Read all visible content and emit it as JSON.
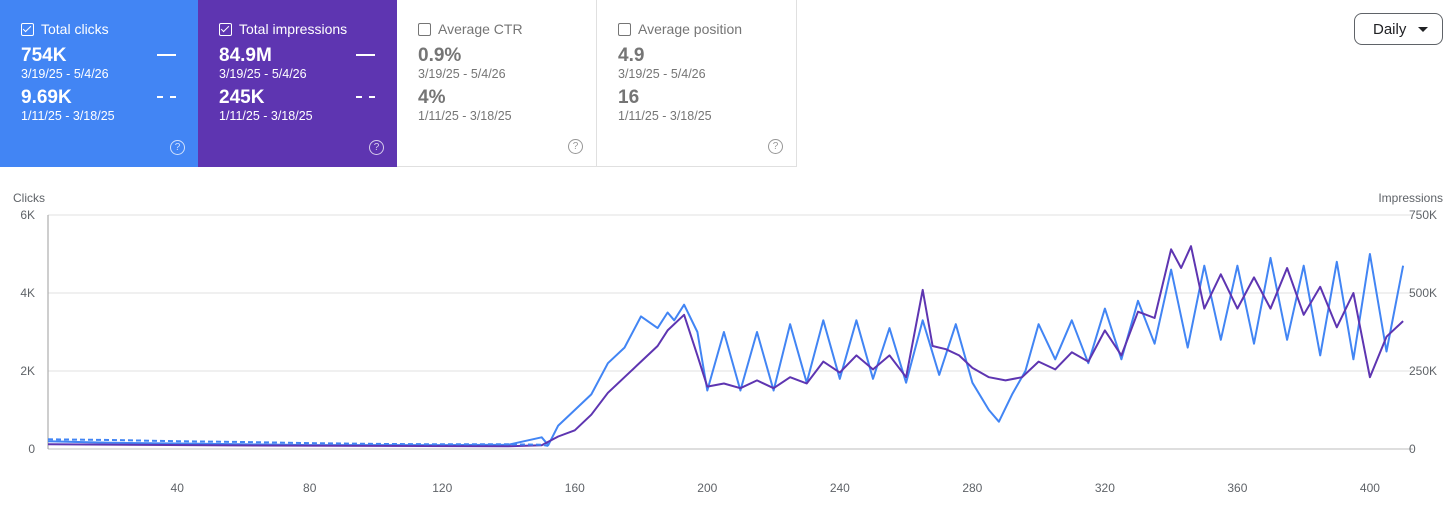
{
  "cards": [
    {
      "label": "Total clicks",
      "checked": true,
      "current": {
        "value": "754K",
        "range": "3/19/25 - 5/4/26"
      },
      "previous": {
        "value": "9.69K",
        "range": "1/11/25 - 3/18/25"
      },
      "help": "?"
    },
    {
      "label": "Total impressions",
      "checked": true,
      "current": {
        "value": "84.9M",
        "range": "3/19/25 - 5/4/26"
      },
      "previous": {
        "value": "245K",
        "range": "1/11/25 - 3/18/25"
      },
      "help": "?"
    },
    {
      "label": "Average CTR",
      "checked": false,
      "current": {
        "value": "0.9%",
        "range": "3/19/25 - 5/4/26"
      },
      "previous": {
        "value": "4%",
        "range": "1/11/25 - 3/18/25"
      },
      "help": "?"
    },
    {
      "label": "Average position",
      "checked": false,
      "current": {
        "value": "4.9",
        "range": "3/19/25 - 5/4/26"
      },
      "previous": {
        "value": "16",
        "range": "1/11/25 - 3/18/25"
      },
      "help": "?"
    }
  ],
  "granularity": {
    "selected": "Daily",
    "icon": "caret-down-icon"
  },
  "colors": {
    "clicks": "#4285f4",
    "impressions": "#5e35b1",
    "previous_clicks": "#4285f4",
    "grid": "#e0e0e0"
  },
  "chart_data": {
    "type": "line",
    "xlabel": "",
    "x_ticks": [
      "40",
      "80",
      "120",
      "160",
      "200",
      "240",
      "280",
      "320",
      "360",
      "400"
    ],
    "x_range": [
      1,
      413
    ],
    "y_left": {
      "label": "Clicks",
      "ticks": [
        "0",
        "2K",
        "4K",
        "6K"
      ],
      "range": [
        0,
        6000
      ]
    },
    "y_right": {
      "label": "Impressions",
      "ticks": [
        "0",
        "250K",
        "500K",
        "750K"
      ],
      "range": [
        0,
        750000
      ]
    },
    "grid": true,
    "series": [
      {
        "axis": "left",
        "style": "solid",
        "points": [
          [
            1,
            200
          ],
          [
            10,
            180
          ],
          [
            20,
            160
          ],
          [
            40,
            140
          ],
          [
            60,
            120
          ],
          [
            80,
            100
          ],
          [
            100,
            100
          ],
          [
            120,
            100
          ],
          [
            140,
            110
          ],
          [
            150,
            300
          ],
          [
            152,
            100
          ],
          [
            155,
            600
          ],
          [
            160,
            1000
          ],
          [
            165,
            1400
          ],
          [
            170,
            2200
          ],
          [
            175,
            2600
          ],
          [
            180,
            3400
          ],
          [
            185,
            3100
          ],
          [
            188,
            3500
          ],
          [
            190,
            3300
          ],
          [
            193,
            3700
          ],
          [
            197,
            3000
          ],
          [
            200,
            1500
          ],
          [
            205,
            3000
          ],
          [
            210,
            1500
          ],
          [
            215,
            3000
          ],
          [
            220,
            1500
          ],
          [
            225,
            3200
          ],
          [
            230,
            1700
          ],
          [
            235,
            3300
          ],
          [
            240,
            1800
          ],
          [
            245,
            3300
          ],
          [
            250,
            1800
          ],
          [
            255,
            3100
          ],
          [
            260,
            1700
          ],
          [
            265,
            3300
          ],
          [
            270,
            1900
          ],
          [
            275,
            3200
          ],
          [
            280,
            1700
          ],
          [
            285,
            1000
          ],
          [
            288,
            700
          ],
          [
            292,
            1400
          ],
          [
            296,
            2000
          ],
          [
            300,
            3200
          ],
          [
            305,
            2300
          ],
          [
            310,
            3300
          ],
          [
            315,
            2200
          ],
          [
            320,
            3600
          ],
          [
            325,
            2300
          ],
          [
            330,
            3800
          ],
          [
            335,
            2700
          ],
          [
            340,
            4600
          ],
          [
            345,
            2600
          ],
          [
            350,
            4700
          ],
          [
            355,
            2800
          ],
          [
            360,
            4700
          ],
          [
            365,
            2700
          ],
          [
            370,
            4900
          ],
          [
            375,
            2800
          ],
          [
            380,
            4700
          ],
          [
            385,
            2400
          ],
          [
            390,
            4800
          ],
          [
            395,
            2300
          ],
          [
            400,
            5000
          ],
          [
            405,
            2500
          ],
          [
            410,
            4700
          ]
        ]
      },
      {
        "axis": "right",
        "style": "solid",
        "points": [
          [
            1,
            15000
          ],
          [
            50,
            12000
          ],
          [
            100,
            10000
          ],
          [
            140,
            9000
          ],
          [
            150,
            12000
          ],
          [
            155,
            40000
          ],
          [
            160,
            60000
          ],
          [
            165,
            110000
          ],
          [
            170,
            180000
          ],
          [
            175,
            230000
          ],
          [
            180,
            280000
          ],
          [
            185,
            330000
          ],
          [
            188,
            380000
          ],
          [
            193,
            430000
          ],
          [
            197,
            300000
          ],
          [
            200,
            200000
          ],
          [
            205,
            210000
          ],
          [
            210,
            195000
          ],
          [
            215,
            220000
          ],
          [
            220,
            195000
          ],
          [
            225,
            230000
          ],
          [
            230,
            210000
          ],
          [
            235,
            280000
          ],
          [
            240,
            245000
          ],
          [
            245,
            300000
          ],
          [
            250,
            255000
          ],
          [
            255,
            300000
          ],
          [
            260,
            230000
          ],
          [
            265,
            510000
          ],
          [
            268,
            330000
          ],
          [
            272,
            320000
          ],
          [
            276,
            300000
          ],
          [
            280,
            260000
          ],
          [
            285,
            230000
          ],
          [
            290,
            220000
          ],
          [
            295,
            230000
          ],
          [
            300,
            280000
          ],
          [
            305,
            255000
          ],
          [
            310,
            310000
          ],
          [
            315,
            280000
          ],
          [
            320,
            380000
          ],
          [
            325,
            300000
          ],
          [
            330,
            440000
          ],
          [
            335,
            420000
          ],
          [
            340,
            640000
          ],
          [
            343,
            580000
          ],
          [
            346,
            650000
          ],
          [
            350,
            450000
          ],
          [
            355,
            560000
          ],
          [
            360,
            450000
          ],
          [
            365,
            550000
          ],
          [
            370,
            450000
          ],
          [
            375,
            580000
          ],
          [
            380,
            430000
          ],
          [
            385,
            520000
          ],
          [
            390,
            390000
          ],
          [
            395,
            500000
          ],
          [
            400,
            230000
          ],
          [
            405,
            360000
          ],
          [
            410,
            410000
          ]
        ]
      },
      {
        "axis": "left",
        "style": "dashed",
        "points": [
          [
            1,
            250
          ],
          [
            20,
            230
          ],
          [
            40,
            200
          ],
          [
            60,
            180
          ],
          [
            80,
            150
          ],
          [
            100,
            130
          ],
          [
            120,
            120
          ],
          [
            140,
            120
          ],
          [
            150,
            110
          ],
          [
            152,
            80
          ]
        ]
      }
    ]
  }
}
